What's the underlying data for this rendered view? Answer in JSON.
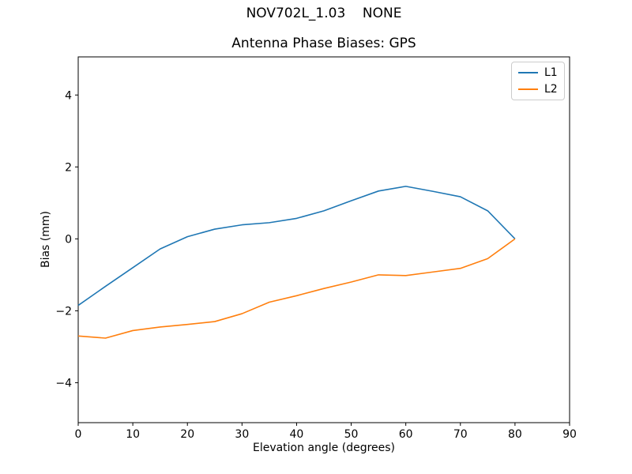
{
  "figure": {
    "suptitle": "NOV702L_1.03    NONE"
  },
  "chart_data": {
    "type": "line",
    "title": "Antenna Phase Biases: GPS",
    "xlabel": "Elevation angle (degrees)",
    "ylabel": "Bias (mm)",
    "xlim": [
      0,
      90
    ],
    "ylim": [
      -5.11,
      5.06
    ],
    "xticks": [
      0,
      10,
      20,
      30,
      40,
      50,
      60,
      70,
      80,
      90
    ],
    "yticks": [
      -4,
      -2,
      0,
      2,
      4
    ],
    "grid": false,
    "legend_position": "upper right",
    "x": [
      0,
      5,
      10,
      15,
      20,
      25,
      30,
      35,
      40,
      45,
      50,
      55,
      60,
      65,
      70,
      75,
      80
    ],
    "series": [
      {
        "name": "L1",
        "color": "#1f77b4",
        "values": [
          -1.85,
          -1.32,
          -0.8,
          -0.28,
          0.06,
          0.27,
          0.39,
          0.45,
          0.57,
          0.78,
          1.06,
          1.33,
          1.46,
          1.32,
          1.17,
          0.78,
          0.0
        ]
      },
      {
        "name": "L2",
        "color": "#ff7f0e",
        "values": [
          -2.7,
          -2.76,
          -2.55,
          -2.45,
          -2.38,
          -2.3,
          -2.08,
          -1.76,
          -1.58,
          -1.38,
          -1.2,
          -1.0,
          -1.02,
          -0.92,
          -0.82,
          -0.55,
          0.0
        ]
      }
    ]
  }
}
